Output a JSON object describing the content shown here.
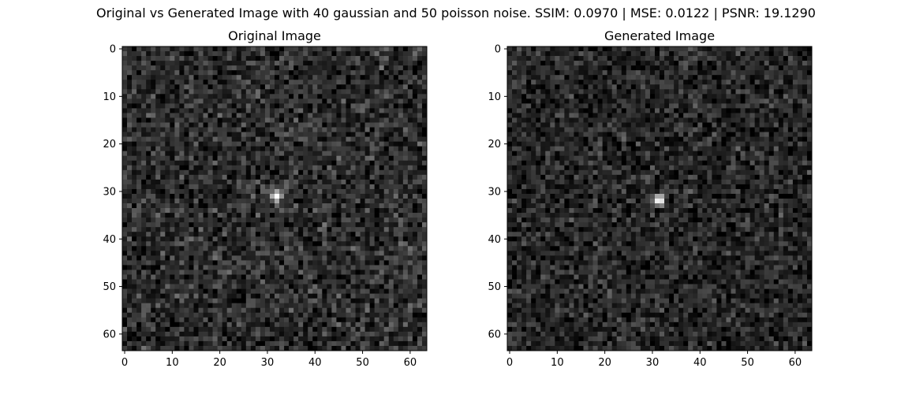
{
  "suptitle": "Original vs Generated Image with 40 gaussian and 50 poisson noise. SSIM: 0.0970 | MSE: 0.0122 | PSNR: 19.1290",
  "colors": {
    "background": "#ffffff",
    "axis": "#000000",
    "colormap": "gray"
  },
  "chart_data": [
    {
      "type": "heatmap",
      "title": "Original Image",
      "colormap": "gray",
      "image_size": [
        64,
        64
      ],
      "xlim": [
        -0.5,
        63.5
      ],
      "ylim": [
        63.5,
        -0.5
      ],
      "xticks": [
        0,
        10,
        20,
        30,
        40,
        50,
        60
      ],
      "yticks": [
        0,
        10,
        20,
        30,
        40,
        50,
        60
      ],
      "background_noise": {
        "mean": 0.18,
        "spread": 0.13
      },
      "bright_spot": {
        "center_x": 32,
        "center_y": 31,
        "peak": 1.0
      }
    },
    {
      "type": "heatmap",
      "title": "Generated Image",
      "colormap": "gray",
      "image_size": [
        64,
        64
      ],
      "xlim": [
        -0.5,
        63.5
      ],
      "ylim": [
        63.5,
        -0.5
      ],
      "xticks": [
        0,
        10,
        20,
        30,
        40,
        50,
        60
      ],
      "yticks": [
        0,
        10,
        20,
        30,
        40,
        50,
        60
      ],
      "background_noise": {
        "mean": 0.15,
        "spread": 0.12
      },
      "bright_spot": {
        "center_x": 31.5,
        "center_y": 32,
        "peak": 1.0
      }
    }
  ]
}
